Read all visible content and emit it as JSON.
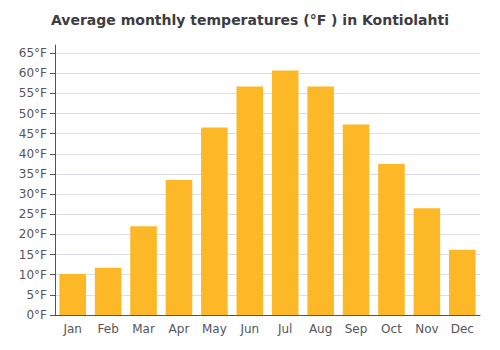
{
  "chart_data": {
    "type": "bar",
    "title": "Average monthly temperatures (°F ) in Kontiolahti",
    "categories": [
      "Jan",
      "Feb",
      "Mar",
      "Apr",
      "May",
      "Jun",
      "Jul",
      "Aug",
      "Sep",
      "Oct",
      "Nov",
      "Dec"
    ],
    "values": [
      10.2,
      11.7,
      22.0,
      33.5,
      46.5,
      56.7,
      60.7,
      56.7,
      47.3,
      37.5,
      26.5,
      16.2
    ],
    "color": "#FDB827",
    "ylim": [
      0,
      67
    ],
    "yticks": [
      {
        "value": 0,
        "label": "0°F"
      },
      {
        "value": 5,
        "label": "5°F"
      },
      {
        "value": 10,
        "label": "10°F"
      },
      {
        "value": 15,
        "label": "15°F"
      },
      {
        "value": 20,
        "label": "20°F"
      },
      {
        "value": 25,
        "label": "25°F"
      },
      {
        "value": 30,
        "label": "30°F"
      },
      {
        "value": 35,
        "label": "35°F"
      },
      {
        "value": 40,
        "label": "40°F"
      },
      {
        "value": 45,
        "label": "45°F"
      },
      {
        "value": 50,
        "label": "50°F"
      },
      {
        "value": 55,
        "label": "55°F"
      },
      {
        "value": 60,
        "label": "60°F"
      },
      {
        "value": 65,
        "label": "65°F"
      }
    ],
    "grid": true
  }
}
